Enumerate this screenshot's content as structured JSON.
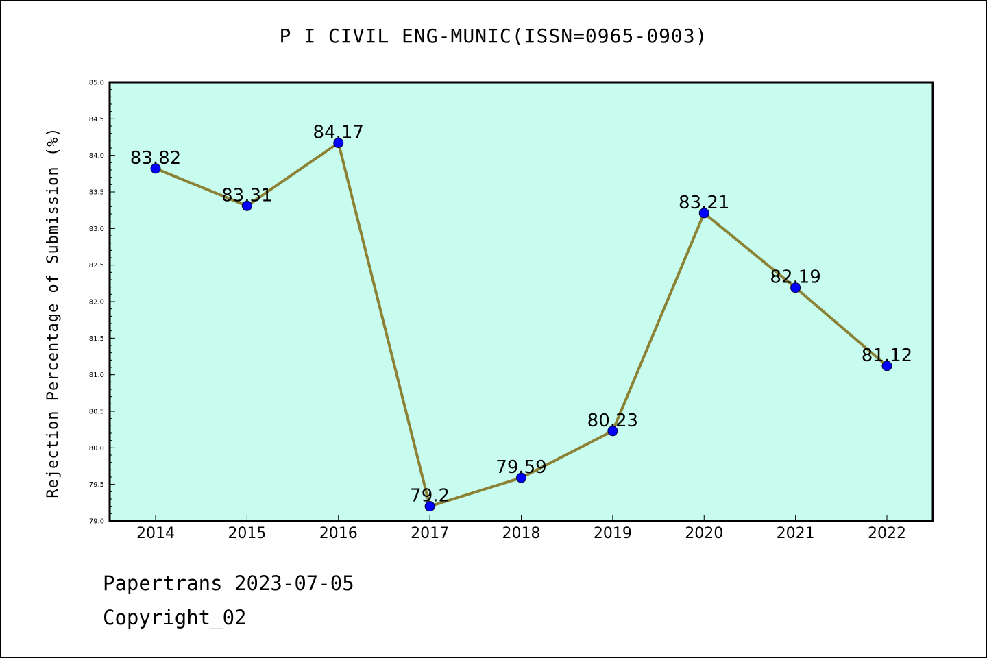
{
  "chart_data": {
    "type": "line",
    "title": "P I CIVIL ENG-MUNIC(ISSN=0965-0903)",
    "xlabel": "",
    "ylabel": "Rejection Percentage of Submission (%)",
    "categories": [
      "2014",
      "2015",
      "2016",
      "2017",
      "2018",
      "2019",
      "2020",
      "2021",
      "2022"
    ],
    "series": [
      {
        "values": [
          83.82,
          83.31,
          84.17,
          79.2,
          79.59,
          80.23,
          83.21,
          82.19,
          81.12
        ],
        "labels": [
          "83.82",
          "83.31",
          "84.17",
          "79.2",
          "79.59",
          "80.23",
          "83.21",
          "82.19",
          "81.12"
        ]
      }
    ],
    "ylim": [
      79.0,
      85.0
    ],
    "yticks": [
      "79.0",
      "79.5",
      "80.0",
      "80.5",
      "81.0",
      "81.5",
      "82.0",
      "82.5",
      "83.0",
      "83.5",
      "84.0",
      "84.5",
      "85.0"
    ],
    "grid": false,
    "legend": "none",
    "colors": {
      "plot_background": "#c8fcee",
      "line": "#8b8235",
      "marker": "#0000ff"
    }
  },
  "footer": {
    "line1": "Papertrans 2023-07-05",
    "line2": "Copyright_02"
  }
}
